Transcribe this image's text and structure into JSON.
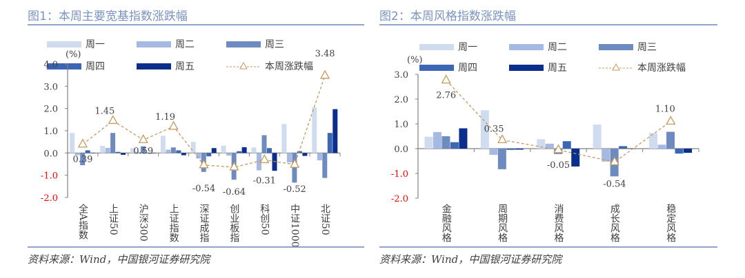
{
  "colors": {
    "mon": "#cfdcf0",
    "tue": "#a5b9e2",
    "wed": "#6e8bbf",
    "thu": "#3a66b3",
    "fri": "#0b2d8c",
    "total": "#c49a5e",
    "neg_tick": "#ff0000",
    "rule": "#8ea3cc"
  },
  "legend": {
    "mon": "周一",
    "tue": "周二",
    "wed": "周三",
    "thu": "周四",
    "fri": "周五",
    "total": "本周涨跌幅"
  },
  "source": "资料来源：Wind，中国银河证券研究院",
  "chart_data": [
    {
      "type": "bar",
      "title": "图1：本周主要宽基指数涨跌幅",
      "ylabel": "(%)",
      "ylim": [
        -2.0,
        4.0
      ],
      "yticks": [
        "4.0",
        "3.0",
        "2.0",
        "1.0",
        "0.0",
        "-1.0",
        "-2.0"
      ],
      "categories": [
        "全A指数",
        "上证50",
        "沪深300",
        "上证指数",
        "深证成指",
        "创业板指",
        "科创50",
        "中证1000",
        "北证50"
      ],
      "series": [
        {
          "name": "周一",
          "values": [
            0.9,
            0.32,
            0.22,
            0.77,
            0.5,
            0.33,
            0.25,
            1.3,
            2.05
          ]
        },
        {
          "name": "周二",
          "values": [
            -0.1,
            0.23,
            0.05,
            0.15,
            -0.25,
            -0.12,
            -0.78,
            -0.42,
            -0.33
          ]
        },
        {
          "name": "周三",
          "values": [
            -0.55,
            0.9,
            0.3,
            0.25,
            -0.85,
            -1.2,
            0.8,
            -1.33,
            -1.12
          ]
        },
        {
          "name": "周四",
          "values": [
            0.12,
            0.05,
            0.0,
            0.12,
            -0.15,
            0.08,
            0.22,
            0.08,
            0.9
          ]
        },
        {
          "name": "周五",
          "values": [
            0.0,
            -0.08,
            0.0,
            -0.1,
            0.22,
            0.26,
            -0.8,
            -0.13,
            1.97
          ]
        }
      ],
      "line": {
        "name": "本周涨跌幅",
        "values": [
          0.39,
          1.45,
          0.59,
          1.19,
          -0.54,
          -0.64,
          -0.31,
          -0.52,
          3.48
        ],
        "labels": [
          "0.39",
          "1.45",
          "0.59",
          "1.19",
          "-0.54",
          "-0.64",
          "-0.31",
          "-0.52",
          "3.48"
        ]
      }
    },
    {
      "type": "bar",
      "title": "图2：本周风格指数涨跌幅",
      "ylabel": "(%)",
      "ylim": [
        -2.0,
        3.0
      ],
      "yticks": [
        "3.0",
        "2.0",
        "1.0",
        "0.0",
        "-1.0",
        "-2.0"
      ],
      "categories": [
        "金融风格",
        "周期风格",
        "消费风格",
        "成长风格",
        "稳定风格"
      ],
      "series": [
        {
          "name": "周一",
          "values": [
            0.48,
            1.55,
            0.38,
            0.97,
            0.63
          ]
        },
        {
          "name": "周二",
          "values": [
            0.67,
            -0.25,
            0.2,
            -0.52,
            0.16
          ]
        },
        {
          "name": "周三",
          "values": [
            0.5,
            -0.83,
            -0.22,
            -1.12,
            0.68
          ]
        },
        {
          "name": "周四",
          "values": [
            0.26,
            -0.05,
            0.3,
            0.1,
            -0.2
          ]
        },
        {
          "name": "周五",
          "values": [
            0.82,
            -0.04,
            -0.72,
            0.01,
            -0.17
          ]
        }
      ],
      "line": {
        "name": "本周涨跌幅",
        "values": [
          2.76,
          0.35,
          -0.05,
          -0.54,
          1.1
        ],
        "labels": [
          "2.76",
          "0.35",
          "-0.05",
          "-0.54",
          "1.10"
        ]
      }
    }
  ]
}
